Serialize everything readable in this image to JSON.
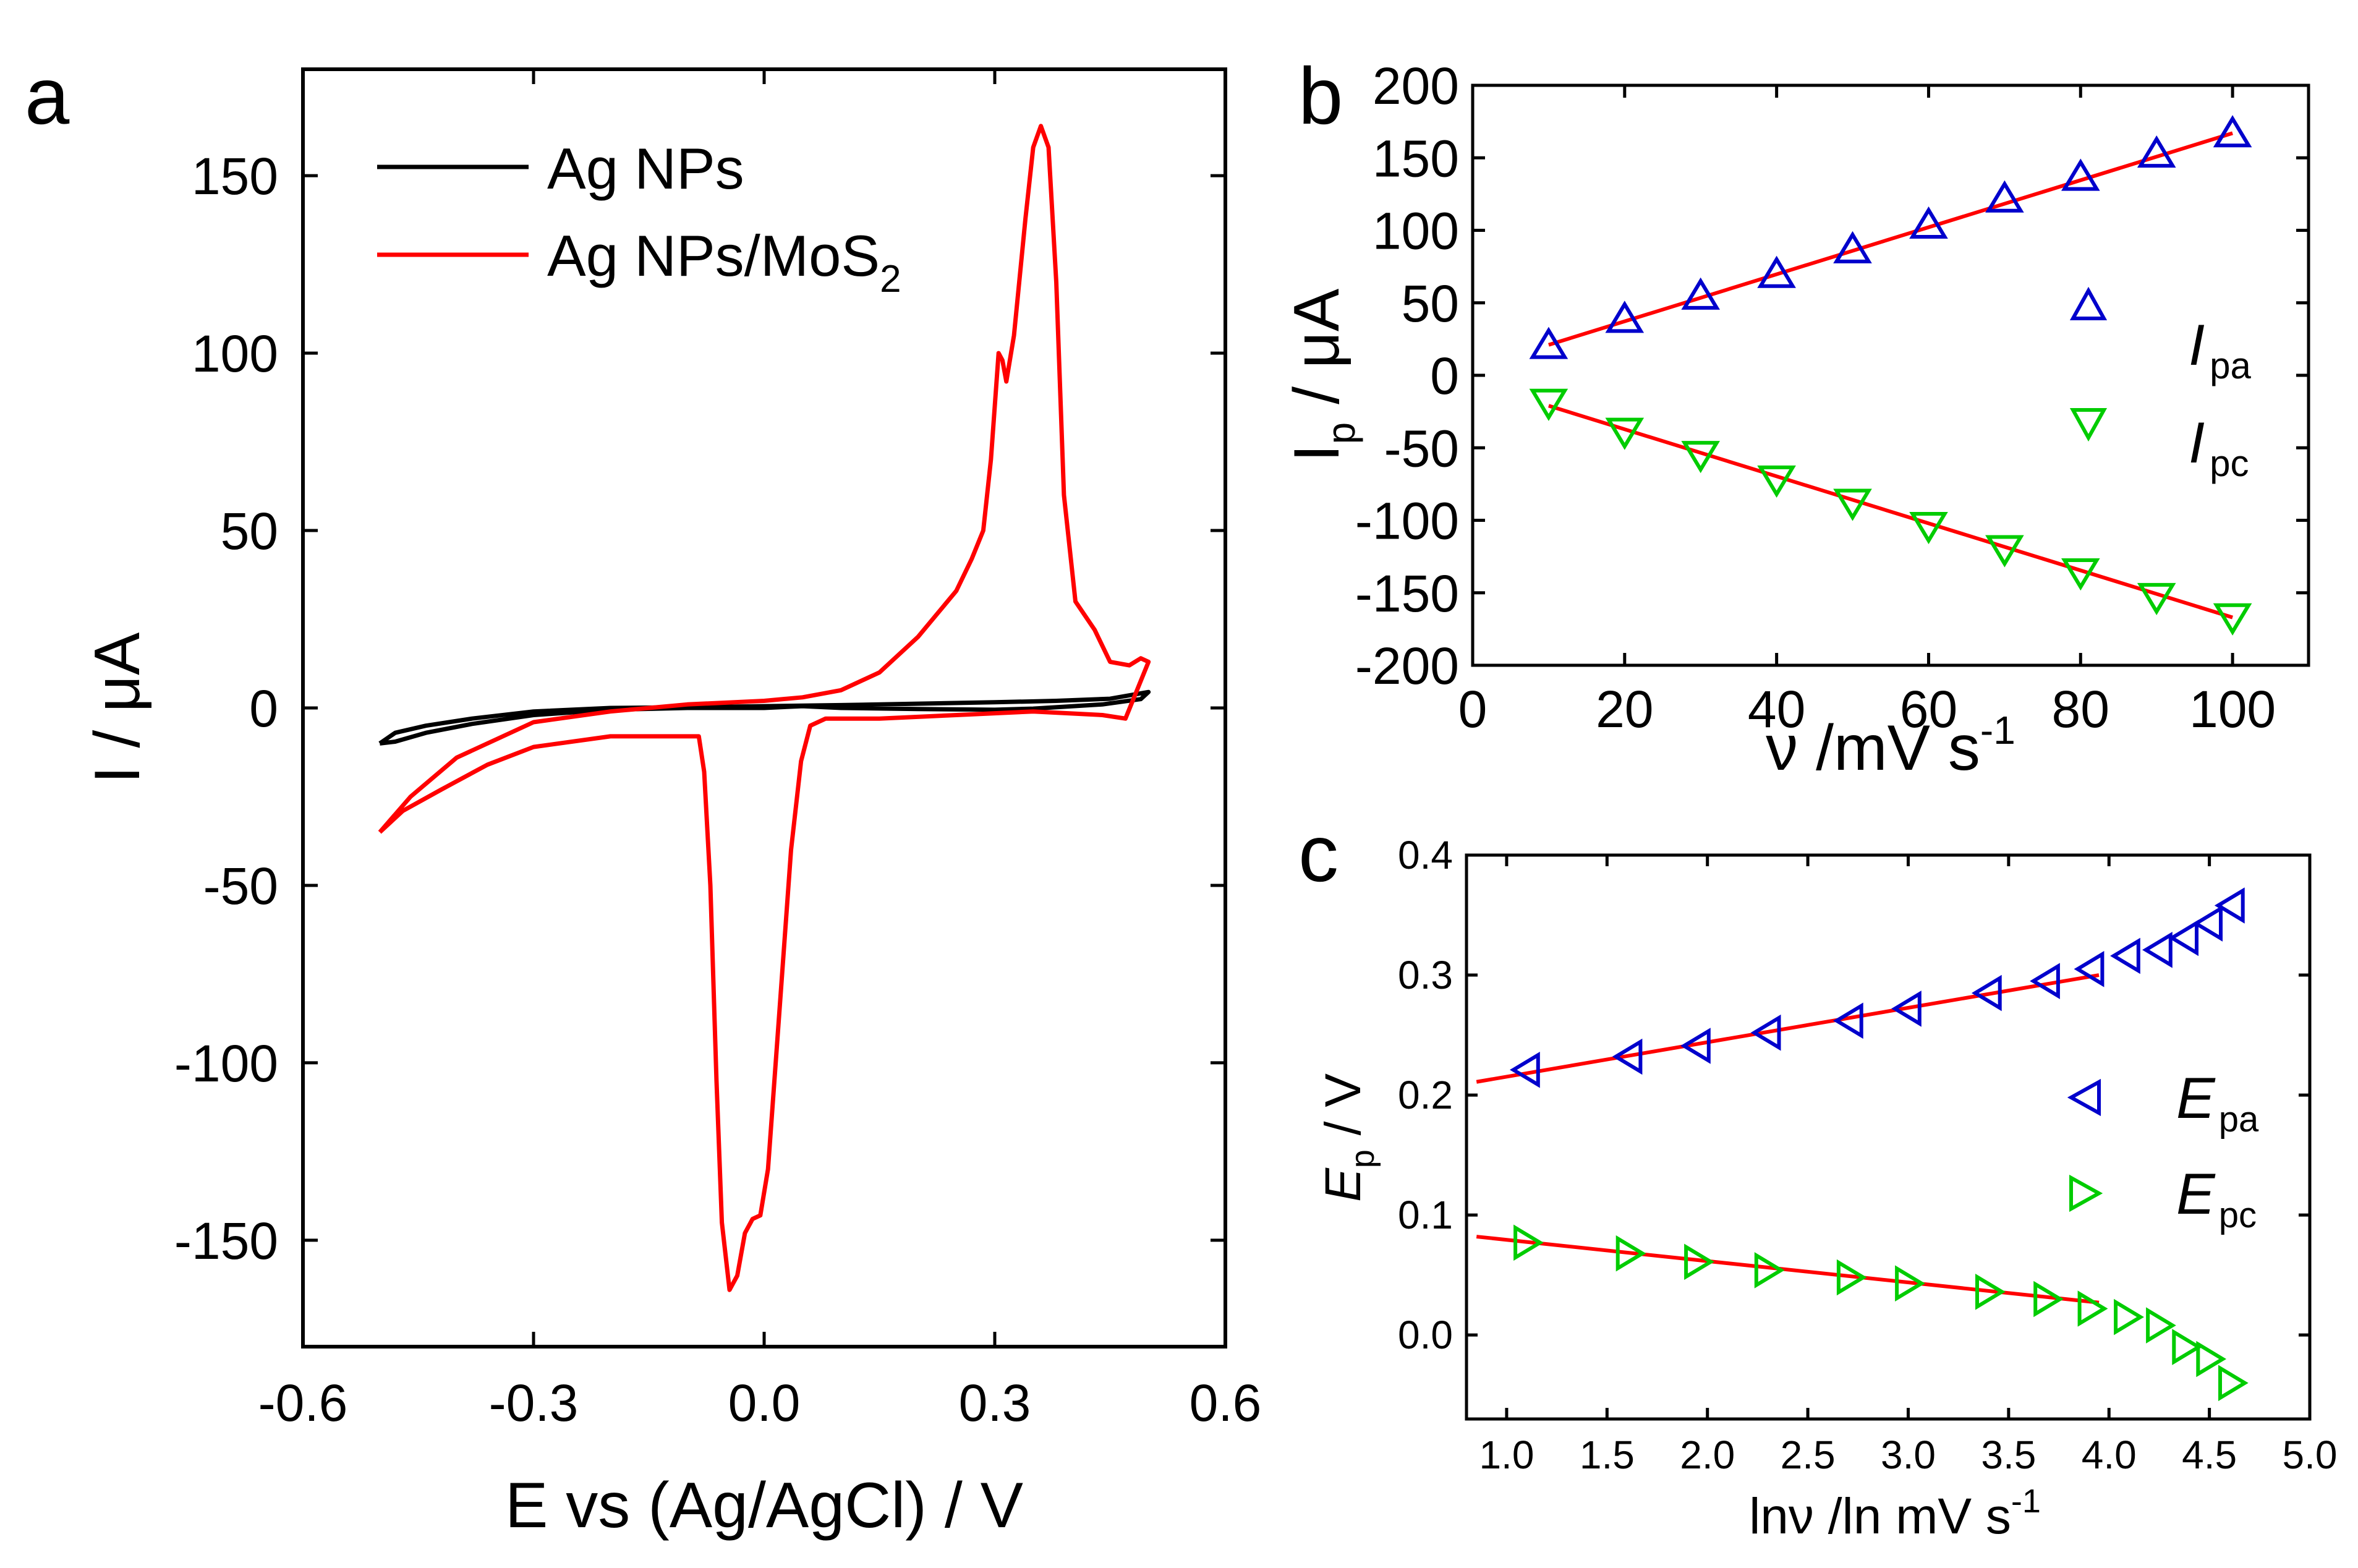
{
  "figure": {
    "panel_labels": [
      "a",
      "b",
      "c"
    ]
  },
  "colors": {
    "ag_nps": "#000000",
    "ag_nps_mos2": "#ff0000",
    "fit": "#ff0000",
    "anodic": "#0000cc",
    "cathodic": "#00cc00"
  },
  "chart_data": [
    {
      "panel": "a",
      "type": "line",
      "title": "",
      "xlabel": "E vs (Ag/AgCl) / V",
      "ylabel": "I / μA",
      "xlim": [
        -0.6,
        0.6
      ],
      "ylim": [
        -180,
        180
      ],
      "x_ticks": [
        "-0.6",
        "-0.3",
        "0.0",
        "0.3",
        "0.6"
      ],
      "y_ticks": [
        "-150",
        "-100",
        "-50",
        "0",
        "50",
        "100",
        "150"
      ],
      "legend": {
        "placement": "top-left",
        "entries": [
          "Ag NPs",
          "Ag NPs/MoS2"
        ]
      },
      "series": [
        {
          "name": "Ag NPs",
          "color": "#000000",
          "points": [
            [
              -0.5,
              -10
            ],
            [
              -0.48,
              -7
            ],
            [
              -0.44,
              -5
            ],
            [
              -0.38,
              -3
            ],
            [
              -0.3,
              -1
            ],
            [
              -0.2,
              0
            ],
            [
              -0.1,
              0.2
            ],
            [
              0,
              0.5
            ],
            [
              0.1,
              0.8
            ],
            [
              0.2,
              1.2
            ],
            [
              0.3,
              1.6
            ],
            [
              0.38,
              2
            ],
            [
              0.45,
              2.6
            ],
            [
              0.5,
              4.5
            ],
            [
              0.49,
              2.5
            ],
            [
              0.44,
              1
            ],
            [
              0.35,
              -0.2
            ],
            [
              0.3,
              -0.5
            ],
            [
              0.2,
              -0.3
            ],
            [
              0.1,
              0
            ],
            [
              0.05,
              0.5
            ],
            [
              0,
              0
            ],
            [
              -0.1,
              0
            ],
            [
              -0.2,
              -0.5
            ],
            [
              -0.3,
              -2
            ],
            [
              -0.38,
              -4.5
            ],
            [
              -0.44,
              -7
            ],
            [
              -0.48,
              -9.5
            ],
            [
              -0.5,
              -10
            ]
          ]
        },
        {
          "name": "Ag NPs/MoS2",
          "color": "#ff0000",
          "points": [
            [
              -0.5,
              -35
            ],
            [
              -0.47,
              -29
            ],
            [
              -0.42,
              -23
            ],
            [
              -0.36,
              -16
            ],
            [
              -0.3,
              -11
            ],
            [
              -0.2,
              -8
            ],
            [
              -0.1,
              -8
            ],
            [
              -0.085,
              -8
            ],
            [
              -0.078,
              -18
            ],
            [
              -0.07,
              -50
            ],
            [
              -0.062,
              -105
            ],
            [
              -0.055,
              -145
            ],
            [
              -0.045,
              -164
            ],
            [
              -0.035,
              -160
            ],
            [
              -0.025,
              -148
            ],
            [
              -0.015,
              -144
            ],
            [
              -0.005,
              -143
            ],
            [
              0.005,
              -130
            ],
            [
              0.02,
              -85
            ],
            [
              0.035,
              -40
            ],
            [
              0.048,
              -15
            ],
            [
              0.06,
              -5
            ],
            [
              0.08,
              -3
            ],
            [
              0.15,
              -3
            ],
            [
              0.25,
              -2
            ],
            [
              0.35,
              -1
            ],
            [
              0.44,
              -2
            ],
            [
              0.47,
              -3
            ],
            [
              0.5,
              13
            ],
            [
              0.49,
              14
            ],
            [
              0.475,
              12
            ],
            [
              0.45,
              13
            ],
            [
              0.43,
              22
            ],
            [
              0.405,
              30
            ],
            [
              0.39,
              60
            ],
            [
              0.38,
              120
            ],
            [
              0.37,
              158
            ],
            [
              0.36,
              164
            ],
            [
              0.35,
              158
            ],
            [
              0.34,
              138
            ],
            [
              0.325,
              105
            ],
            [
              0.315,
              92
            ],
            [
              0.31,
              98
            ],
            [
              0.305,
              100
            ],
            [
              0.295,
              70
            ],
            [
              0.285,
              50
            ],
            [
              0.27,
              42
            ],
            [
              0.25,
              33
            ],
            [
              0.2,
              20
            ],
            [
              0.15,
              10
            ],
            [
              0.1,
              5
            ],
            [
              0.05,
              3
            ],
            [
              0,
              2
            ],
            [
              -0.1,
              1
            ],
            [
              -0.2,
              -1
            ],
            [
              -0.3,
              -4
            ],
            [
              -0.4,
              -14
            ],
            [
              -0.46,
              -25
            ],
            [
              -0.5,
              -35
            ]
          ]
        }
      ]
    },
    {
      "panel": "b",
      "type": "scatter",
      "title": "",
      "xlabel": "ν /mV s",
      "xlabel_sup": "-1",
      "ylabel": "I",
      "ylabel_sub": "p",
      "ylabel_tail": "/ μA",
      "xlim": [
        0,
        110
      ],
      "ylim": [
        -200,
        200
      ],
      "x_ticks": [
        "0",
        "20",
        "40",
        "60",
        "80",
        "100"
      ],
      "y_ticks": [
        "-200",
        "-150",
        "-100",
        "-50",
        "0",
        "50",
        "100",
        "150",
        "200"
      ],
      "legend": {
        "placement": "right",
        "entries": [
          {
            "name": "I",
            "sub": "pa"
          },
          {
            "name": "I",
            "sub": "pc"
          }
        ]
      },
      "x": [
        10,
        20,
        30,
        40,
        50,
        60,
        70,
        80,
        90,
        100
      ],
      "series": [
        {
          "name": "Ipa",
          "marker": "triangle-up",
          "color": "#0000cc",
          "values": [
            21,
            39,
            55,
            70,
            87,
            104,
            122,
            137,
            153,
            167
          ]
        },
        {
          "name": "Ipc",
          "marker": "triangle-down",
          "color": "#00cc00",
          "values": [
            -19,
            -39,
            -55,
            -72,
            -88,
            -104,
            -120,
            -136,
            -153,
            -167
          ]
        }
      ],
      "fits": [
        {
          "name": "Ipa fit",
          "color": "#ff0000",
          "x": [
            10,
            100
          ],
          "y": [
            21,
            167
          ]
        },
        {
          "name": "Ipc fit",
          "color": "#ff0000",
          "x": [
            10,
            100
          ],
          "y": [
            -21,
            -167
          ]
        }
      ]
    },
    {
      "panel": "c",
      "type": "scatter",
      "title": "",
      "xlabel": "lnν /ln mV s",
      "xlabel_sup": "-1",
      "ylabel": "E",
      "ylabel_sub": "p",
      "ylabel_tail": "/ V",
      "xlim": [
        0.8,
        5.0
      ],
      "ylim": [
        -0.07,
        0.4
      ],
      "x_ticks": [
        "1.0",
        "1.5",
        "2.0",
        "2.5",
        "3.0",
        "3.5",
        "4.0",
        "4.5",
        "5.0"
      ],
      "y_ticks": [
        "0.0",
        "0.1",
        "0.2",
        "0.3",
        "0.4"
      ],
      "legend": {
        "placement": "right",
        "entries": [
          {
            "name": "E",
            "sub": "pa"
          },
          {
            "name": "E",
            "sub": "pc"
          }
        ]
      },
      "x": [
        1.1,
        1.61,
        1.95,
        2.3,
        2.71,
        3.0,
        3.4,
        3.69,
        3.91,
        4.09,
        4.25,
        4.38,
        4.5,
        4.61
      ],
      "series": [
        {
          "name": "Epa",
          "marker": "triangle-left",
          "color": "#0000cc",
          "values": [
            0.221,
            0.232,
            0.241,
            0.252,
            0.262,
            0.272,
            0.285,
            0.295,
            0.305,
            0.316,
            0.321,
            0.331,
            0.343,
            0.358
          ]
        },
        {
          "name": "Epc",
          "marker": "triangle-right",
          "color": "#00cc00",
          "values": [
            0.077,
            0.068,
            0.061,
            0.054,
            0.048,
            0.043,
            0.036,
            0.03,
            0.022,
            0.015,
            0.008,
            -0.01,
            -0.02,
            -0.04
          ]
        }
      ],
      "fits": [
        {
          "name": "Epa fit",
          "color": "#ff0000",
          "x": [
            0.85,
            3.95
          ],
          "y": [
            0.211,
            0.3
          ]
        },
        {
          "name": "Epc fit",
          "color": "#ff0000",
          "x": [
            0.85,
            3.95
          ],
          "y": [
            0.082,
            0.027
          ]
        }
      ]
    }
  ]
}
